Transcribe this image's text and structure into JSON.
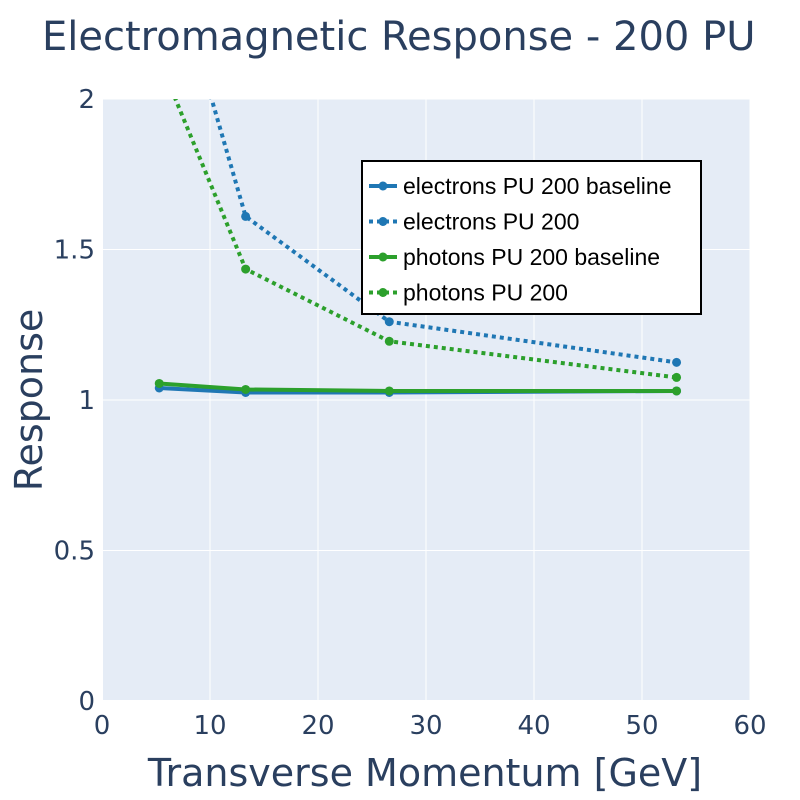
{
  "chart_data": {
    "type": "line",
    "title": "Electromagnetic Response - 200 PU",
    "xlabel": "Transverse Momentum [GeV]",
    "ylabel": "Response",
    "xlim": [
      0,
      60
    ],
    "ylim": [
      0,
      2
    ],
    "xticks": [
      "0",
      "10",
      "20",
      "30",
      "40",
      "50",
      "60"
    ],
    "yticks": [
      "0",
      "0.5",
      "1",
      "1.5",
      "2"
    ],
    "grid": true,
    "legend_position": "top-right",
    "series": [
      {
        "name": "electrons PU 200 baseline",
        "color": "#1f77b4",
        "dash": "solid",
        "x": [
          5.3,
          13.3,
          26.6,
          53.2
        ],
        "y": [
          1.04,
          1.025,
          1.025,
          1.03
        ]
      },
      {
        "name": "electrons PU 200",
        "color": "#1f77b4",
        "dash": "dot",
        "x": [
          5.3,
          13.3,
          26.6,
          53.2
        ],
        "y": [
          2.6,
          1.61,
          1.26,
          1.125
        ]
      },
      {
        "name": "photons PU 200 baseline",
        "color": "#2ca02c",
        "dash": "solid",
        "x": [
          5.3,
          13.3,
          26.6,
          53.2
        ],
        "y": [
          1.055,
          1.035,
          1.03,
          1.03
        ]
      },
      {
        "name": "photons PU 200",
        "color": "#2ca02c",
        "dash": "dot",
        "x": [
          5.3,
          13.3,
          26.6,
          53.2
        ],
        "y": [
          2.13,
          1.435,
          1.195,
          1.075
        ]
      }
    ]
  }
}
